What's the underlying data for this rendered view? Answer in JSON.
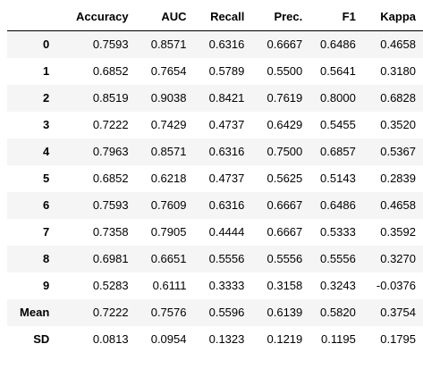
{
  "table": {
    "columns": [
      "",
      "Accuracy",
      "AUC",
      "Recall",
      "Prec.",
      "F1",
      "Kappa"
    ],
    "rows": [
      {
        "index": "0",
        "values": [
          "0.7593",
          "0.8571",
          "0.6316",
          "0.6667",
          "0.6486",
          "0.4658"
        ]
      },
      {
        "index": "1",
        "values": [
          "0.6852",
          "0.7654",
          "0.5789",
          "0.5500",
          "0.5641",
          "0.3180"
        ]
      },
      {
        "index": "2",
        "values": [
          "0.8519",
          "0.9038",
          "0.8421",
          "0.7619",
          "0.8000",
          "0.6828"
        ]
      },
      {
        "index": "3",
        "values": [
          "0.7222",
          "0.7429",
          "0.4737",
          "0.6429",
          "0.5455",
          "0.3520"
        ]
      },
      {
        "index": "4",
        "values": [
          "0.7963",
          "0.8571",
          "0.6316",
          "0.7500",
          "0.6857",
          "0.5367"
        ]
      },
      {
        "index": "5",
        "values": [
          "0.6852",
          "0.6218",
          "0.4737",
          "0.5625",
          "0.5143",
          "0.2839"
        ]
      },
      {
        "index": "6",
        "values": [
          "0.7593",
          "0.7609",
          "0.6316",
          "0.6667",
          "0.6486",
          "0.4658"
        ]
      },
      {
        "index": "7",
        "values": [
          "0.7358",
          "0.7905",
          "0.4444",
          "0.6667",
          "0.5333",
          "0.3592"
        ]
      },
      {
        "index": "8",
        "values": [
          "0.6981",
          "0.6651",
          "0.5556",
          "0.5556",
          "0.5556",
          "0.3270"
        ]
      },
      {
        "index": "9",
        "values": [
          "0.5283",
          "0.6111",
          "0.3333",
          "0.3158",
          "0.3243",
          "-0.0376"
        ]
      },
      {
        "index": "Mean",
        "values": [
          "0.7222",
          "0.7576",
          "0.5596",
          "0.6139",
          "0.5820",
          "0.3754"
        ]
      },
      {
        "index": "SD",
        "values": [
          "0.0813",
          "0.0954",
          "0.1323",
          "0.1219",
          "0.1195",
          "0.1795"
        ]
      }
    ]
  },
  "colors": {
    "stripe": "#f5f5f5",
    "background": "#ffffff",
    "header_rule": "#000000"
  }
}
